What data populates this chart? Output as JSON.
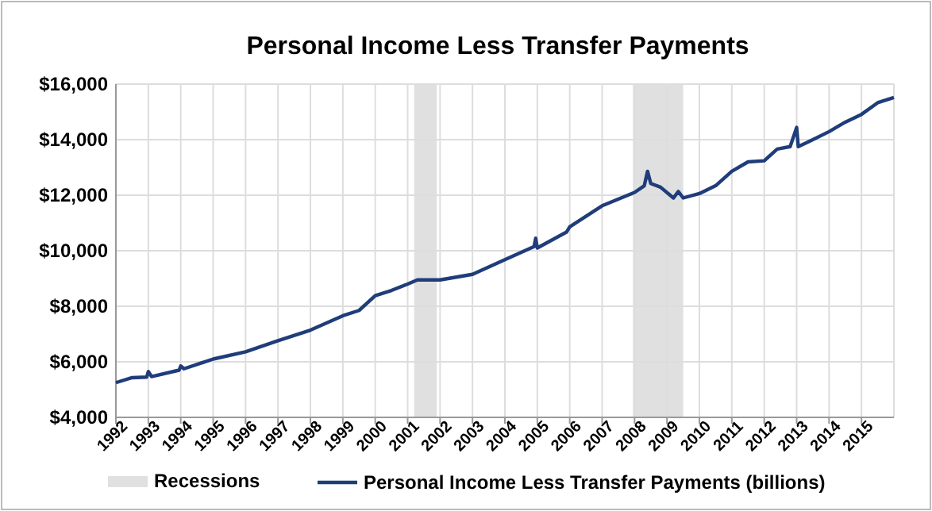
{
  "chart_data": {
    "type": "line",
    "title": "Personal Income Less Transfer Payments",
    "xlim": [
      1992,
      2016
    ],
    "xticks": [
      1992,
      1993,
      1994,
      1995,
      1996,
      1997,
      1998,
      1999,
      2000,
      2001,
      2002,
      2003,
      2004,
      2005,
      2006,
      2007,
      2008,
      2009,
      2010,
      2011,
      2012,
      2013,
      2014,
      2015
    ],
    "ylim": [
      4000,
      16000
    ],
    "yticks": [
      {
        "value": 4000,
        "label": "$4,000"
      },
      {
        "value": 6000,
        "label": "$6,000"
      },
      {
        "value": 8000,
        "label": "$8,000"
      },
      {
        "value": 10000,
        "label": "$10,000"
      },
      {
        "value": 12000,
        "label": "$12,000"
      },
      {
        "value": 14000,
        "label": "$14,000"
      },
      {
        "value": 16000,
        "label": "$16,000"
      }
    ],
    "grid": true,
    "legend": "bottom",
    "bands": [
      {
        "axis": "x",
        "from": 2001.2,
        "to": 2001.9,
        "color": "#e0e0e0",
        "label": "Recessions"
      },
      {
        "axis": "x",
        "from": 2007.95,
        "to": 2009.5,
        "color": "#e0e0e0"
      }
    ],
    "series": [
      {
        "name": "Personal Income Less Transfer Payments (billions)",
        "color": "#1f3d7a",
        "x": [
          1992,
          1992.5,
          1992.95,
          1993,
          1993.1,
          1993.95,
          1994,
          1994.1,
          1995,
          1996,
          1997,
          1998,
          1999,
          1999.5,
          2000,
          2000.5,
          2001,
          2001.3,
          2002,
          2002.5,
          2003,
          2004,
          2004.9,
          2004.95,
          2005.0,
          2005.9,
          2006,
          2007,
          2008,
          2008.3,
          2008.4,
          2008.5,
          2008.8,
          2009.2,
          2009.35,
          2009.5,
          2010,
          2010.5,
          2011,
          2011.5,
          2012,
          2012.4,
          2012.8,
          2013,
          2013.05,
          2013.5,
          2014,
          2014.5,
          2015,
          2015.5,
          2016
        ],
        "values": [
          5250,
          5430,
          5450,
          5650,
          5470,
          5700,
          5850,
          5750,
          6100,
          6360,
          6760,
          7140,
          7660,
          7850,
          8380,
          8570,
          8800,
          8950,
          8950,
          9050,
          9150,
          9680,
          10150,
          10450,
          10100,
          10670,
          10860,
          11620,
          12100,
          12340,
          12860,
          12420,
          12290,
          11900,
          12130,
          11900,
          12060,
          12340,
          12860,
          13200,
          13240,
          13660,
          13750,
          14440,
          13750,
          14000,
          14290,
          14630,
          14910,
          15330,
          15520
        ]
      }
    ]
  }
}
